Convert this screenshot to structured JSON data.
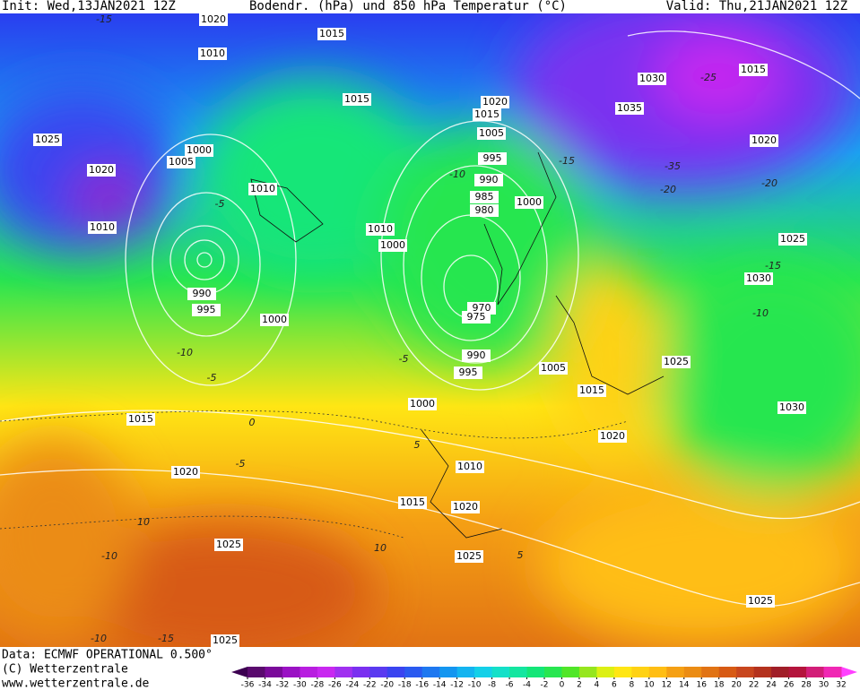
{
  "header": {
    "init": "Init: Wed,13JAN2021 12Z",
    "title": "Bodendr. (hPa) und 850 hPa Temperatur (°C)",
    "valid": "Valid: Thu,21JAN2021 12Z"
  },
  "map": {
    "isobar_labels": [
      1020,
      1015,
      1010,
      1015,
      1025,
      1000,
      1005,
      1020,
      1010,
      1010,
      1010,
      1000,
      990,
      995,
      1000,
      1020,
      1015,
      1005,
      995,
      990,
      985,
      980,
      1000,
      970,
      975,
      990,
      995,
      1005,
      1015,
      1000,
      1030,
      1035,
      1015,
      1020,
      1025,
      1030,
      1025,
      1030,
      1015,
      1020,
      1020,
      1010,
      1015,
      1020,
      1025,
      1025,
      1025,
      1025
    ],
    "temperature_labels": [
      -15,
      -25,
      -35,
      -20,
      -15,
      -10,
      -5,
      -10,
      -5,
      0,
      -5,
      -5,
      5,
      10,
      10,
      -10,
      -10,
      -15,
      5,
      -15,
      -10,
      -20
    ]
  },
  "footer": {
    "data": "Data: ECMWF OPERATIONAL 0.500°",
    "copyright": "(C) Wetterzentrale",
    "url": "www.wetterzentrale.de"
  },
  "colorbar": {
    "ticks": [
      -36,
      -34,
      -32,
      -30,
      -28,
      -26,
      -24,
      -22,
      -20,
      -18,
      -16,
      -14,
      -12,
      -10,
      -8,
      -6,
      -4,
      -2,
      0,
      2,
      4,
      6,
      8,
      10,
      12,
      14,
      16,
      18,
      20,
      22,
      24,
      26,
      28,
      30,
      32
    ],
    "colors": [
      "#5a0a6e",
      "#7a0a9a",
      "#9a12c4",
      "#b81ee0",
      "#c828f0",
      "#a030f0",
      "#7a30f0",
      "#5a3af0",
      "#3a44f0",
      "#2a5af0",
      "#1e78f0",
      "#1496f0",
      "#14b4f0",
      "#14d0e8",
      "#14e0c8",
      "#14e6a0",
      "#14e678",
      "#28e650",
      "#50e628",
      "#96e61e",
      "#dcf014",
      "#ffe614",
      "#ffd214",
      "#ffbe14",
      "#f5a014",
      "#eb8c14",
      "#e17314",
      "#d75a14",
      "#c8461e",
      "#b4321e",
      "#a01e28",
      "#b4143c",
      "#d21e78",
      "#f028b4"
    ]
  }
}
